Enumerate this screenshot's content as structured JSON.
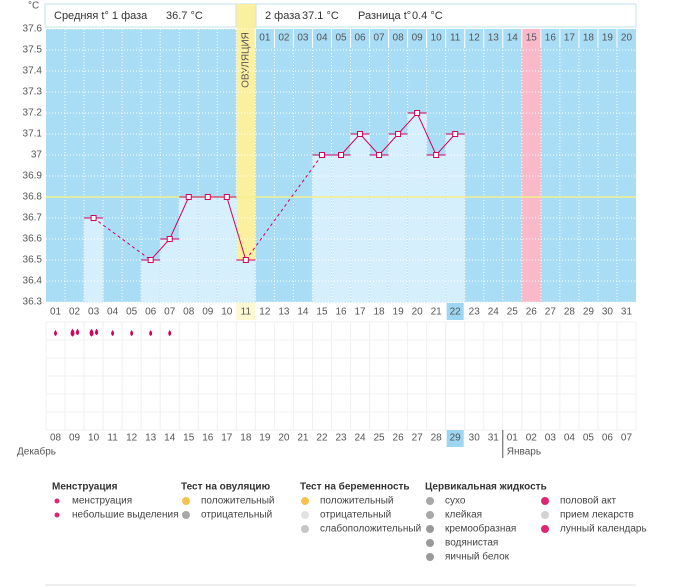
{
  "header": {
    "phase1_label": "Средняя t° 1 фаза",
    "phase1_value": "36.7 °С",
    "phase2_label": "2 фаза",
    "phase2_value": "37.1 °С",
    "diff_label": "Разница t°",
    "diff_value": "0.4 °С"
  },
  "chart_data": {
    "type": "line",
    "y_label": "°С",
    "categories": [
      "01",
      "02",
      "03",
      "04",
      "05",
      "06",
      "07",
      "08",
      "09",
      "10",
      "11",
      "12",
      "13",
      "14",
      "15",
      "16",
      "17",
      "18",
      "19",
      "20",
      "21",
      "22",
      "23",
      "24",
      "25",
      "26",
      "27",
      "28",
      "29",
      "30",
      "31"
    ],
    "values": [
      null,
      null,
      36.7,
      null,
      null,
      36.5,
      36.6,
      36.8,
      36.8,
      36.8,
      36.5,
      null,
      null,
      null,
      37.0,
      37.0,
      37.1,
      37.0,
      37.1,
      37.2,
      37.0,
      37.1,
      null,
      null,
      null,
      null,
      null,
      null,
      null,
      null,
      null
    ],
    "color": "#d6005a",
    "ylim": [
      36.3,
      37.6
    ],
    "yticks": [
      36.3,
      36.4,
      36.5,
      36.6,
      36.7,
      36.8,
      36.9,
      37,
      37.1,
      37.2,
      37.3,
      37.4,
      37.5,
      37.6
    ],
    "grid": true,
    "coverline": 36.8,
    "ovulation_label": "ОВУЛЯЦИЯ",
    "ovulation_day": "11",
    "phase2_days": [
      "01",
      "02",
      "03",
      "04",
      "05",
      "06",
      "07",
      "08",
      "09",
      "10",
      "11",
      "12",
      "13",
      "14",
      "15",
      "16",
      "17",
      "18",
      "19",
      "20"
    ],
    "phase2_marked": "15",
    "current_day": "22"
  },
  "calendar": {
    "dates": [
      {
        "label": "08",
        "red": true
      },
      {
        "label": "09"
      },
      {
        "label": "10"
      },
      {
        "label": "11"
      },
      {
        "label": "12"
      },
      {
        "label": "13"
      },
      {
        "label": "14",
        "red": true
      },
      {
        "label": "15",
        "red": true
      },
      {
        "label": "16"
      },
      {
        "label": "17"
      },
      {
        "label": "18"
      },
      {
        "label": "19"
      },
      {
        "label": "20"
      },
      {
        "label": "21",
        "red": true
      },
      {
        "label": "22",
        "red": true
      },
      {
        "label": "23"
      },
      {
        "label": "24"
      },
      {
        "label": "25"
      },
      {
        "label": "26"
      },
      {
        "label": "27"
      },
      {
        "label": "28",
        "red": true
      },
      {
        "label": "29",
        "today": true
      },
      {
        "label": "30"
      },
      {
        "label": "31"
      },
      {
        "label": "01"
      },
      {
        "label": "02"
      },
      {
        "label": "03"
      },
      {
        "label": "04",
        "red": true
      },
      {
        "label": "05",
        "red": true
      },
      {
        "label": "06"
      },
      {
        "label": "07"
      }
    ],
    "months": [
      "Декабрь",
      "Январь"
    ]
  },
  "legend": [
    {
      "title": "Менструация",
      "items": [
        "менструация",
        "небольшие выделения"
      ]
    },
    {
      "title": "Тест на овуляцию",
      "items": [
        "положительный",
        "отрицательный"
      ]
    },
    {
      "title": "Тест на беременность",
      "items": [
        "положительный",
        "отрицательный",
        "слабоположительный"
      ]
    },
    {
      "title": "Цервикальная жидкость",
      "items": [
        "сухо",
        "клейкая",
        "кремообразная",
        "водянистая",
        "яичный белок"
      ]
    },
    {
      "items": [
        "половой акт",
        "прием лекарств",
        "лунный календарь"
      ]
    }
  ]
}
